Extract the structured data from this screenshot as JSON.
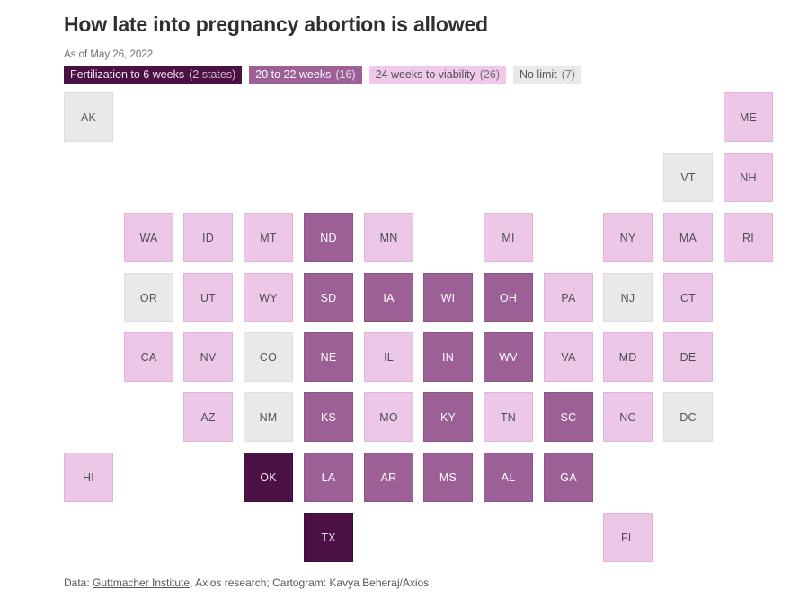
{
  "header": {
    "title": "How late into pregnancy abortion is allowed",
    "subtitle": "As of May 26, 2022"
  },
  "legend": {
    "items": [
      {
        "label": "Fertilization to 6 weeks",
        "count": "(2 states)",
        "bg": "#4b1144",
        "fg": "#f6e3f2",
        "border": "#3c0d36"
      },
      {
        "label": "20 to 22 weeks",
        "count": "(16)",
        "bg": "#9c6097",
        "fg": "#ffffff",
        "border": "#8a5385"
      },
      {
        "label": "24 weeks to viability",
        "count": "(26)",
        "bg": "#f0c9ea",
        "fg": "#4d4d55",
        "border": "#e2b6db"
      },
      {
        "label": "No limit",
        "count": "(7)",
        "bg": "#e9e8eb",
        "fg": "#54545b",
        "border": "#dddce1"
      }
    ]
  },
  "map": {
    "categories": {
      "fert6": {
        "bg": "#4b1144",
        "fg": "#f2dcef",
        "border": "#3c0d36"
      },
      "w2022": {
        "bg": "#9c6097",
        "fg": "#ffffff",
        "border": "#8a5385"
      },
      "viab": {
        "bg": "#edc7e8",
        "fg": "#4d4d55",
        "border": "#e0b4da"
      },
      "nolimit": {
        "bg": "#e9e8eb",
        "fg": "#54545b",
        "border": "#dddce1"
      }
    },
    "tiles": [
      {
        "abbr": "AK",
        "col": 0,
        "row": 0,
        "cat": "nolimit"
      },
      {
        "abbr": "ME",
        "col": 11,
        "row": 0,
        "cat": "viab"
      },
      {
        "abbr": "VT",
        "col": 10,
        "row": 1,
        "cat": "nolimit"
      },
      {
        "abbr": "NH",
        "col": 11,
        "row": 1,
        "cat": "viab"
      },
      {
        "abbr": "WA",
        "col": 1,
        "row": 2,
        "cat": "viab"
      },
      {
        "abbr": "ID",
        "col": 2,
        "row": 2,
        "cat": "viab"
      },
      {
        "abbr": "MT",
        "col": 3,
        "row": 2,
        "cat": "viab"
      },
      {
        "abbr": "ND",
        "col": 4,
        "row": 2,
        "cat": "w2022"
      },
      {
        "abbr": "MN",
        "col": 5,
        "row": 2,
        "cat": "viab"
      },
      {
        "abbr": "MI",
        "col": 7,
        "row": 2,
        "cat": "viab"
      },
      {
        "abbr": "NY",
        "col": 9,
        "row": 2,
        "cat": "viab"
      },
      {
        "abbr": "MA",
        "col": 10,
        "row": 2,
        "cat": "viab"
      },
      {
        "abbr": "RI",
        "col": 11,
        "row": 2,
        "cat": "viab"
      },
      {
        "abbr": "OR",
        "col": 1,
        "row": 3,
        "cat": "nolimit"
      },
      {
        "abbr": "UT",
        "col": 2,
        "row": 3,
        "cat": "viab"
      },
      {
        "abbr": "WY",
        "col": 3,
        "row": 3,
        "cat": "viab"
      },
      {
        "abbr": "SD",
        "col": 4,
        "row": 3,
        "cat": "w2022"
      },
      {
        "abbr": "IA",
        "col": 5,
        "row": 3,
        "cat": "w2022"
      },
      {
        "abbr": "WI",
        "col": 6,
        "row": 3,
        "cat": "w2022"
      },
      {
        "abbr": "OH",
        "col": 7,
        "row": 3,
        "cat": "w2022"
      },
      {
        "abbr": "PA",
        "col": 8,
        "row": 3,
        "cat": "viab"
      },
      {
        "abbr": "NJ",
        "col": 9,
        "row": 3,
        "cat": "nolimit"
      },
      {
        "abbr": "CT",
        "col": 10,
        "row": 3,
        "cat": "viab"
      },
      {
        "abbr": "CA",
        "col": 1,
        "row": 4,
        "cat": "viab"
      },
      {
        "abbr": "NV",
        "col": 2,
        "row": 4,
        "cat": "viab"
      },
      {
        "abbr": "CO",
        "col": 3,
        "row": 4,
        "cat": "nolimit"
      },
      {
        "abbr": "NE",
        "col": 4,
        "row": 4,
        "cat": "w2022"
      },
      {
        "abbr": "IL",
        "col": 5,
        "row": 4,
        "cat": "viab"
      },
      {
        "abbr": "IN",
        "col": 6,
        "row": 4,
        "cat": "w2022"
      },
      {
        "abbr": "WV",
        "col": 7,
        "row": 4,
        "cat": "w2022"
      },
      {
        "abbr": "VA",
        "col": 8,
        "row": 4,
        "cat": "viab"
      },
      {
        "abbr": "MD",
        "col": 9,
        "row": 4,
        "cat": "viab"
      },
      {
        "abbr": "DE",
        "col": 10,
        "row": 4,
        "cat": "viab"
      },
      {
        "abbr": "AZ",
        "col": 2,
        "row": 5,
        "cat": "viab"
      },
      {
        "abbr": "NM",
        "col": 3,
        "row": 5,
        "cat": "nolimit"
      },
      {
        "abbr": "KS",
        "col": 4,
        "row": 5,
        "cat": "w2022"
      },
      {
        "abbr": "MO",
        "col": 5,
        "row": 5,
        "cat": "viab"
      },
      {
        "abbr": "KY",
        "col": 6,
        "row": 5,
        "cat": "w2022"
      },
      {
        "abbr": "TN",
        "col": 7,
        "row": 5,
        "cat": "viab"
      },
      {
        "abbr": "SC",
        "col": 8,
        "row": 5,
        "cat": "w2022"
      },
      {
        "abbr": "NC",
        "col": 9,
        "row": 5,
        "cat": "viab"
      },
      {
        "abbr": "DC",
        "col": 10,
        "row": 5,
        "cat": "nolimit"
      },
      {
        "abbr": "HI",
        "col": 0,
        "row": 6,
        "cat": "viab"
      },
      {
        "abbr": "OK",
        "col": 3,
        "row": 6,
        "cat": "fert6"
      },
      {
        "abbr": "LA",
        "col": 4,
        "row": 6,
        "cat": "w2022"
      },
      {
        "abbr": "AR",
        "col": 5,
        "row": 6,
        "cat": "w2022"
      },
      {
        "abbr": "MS",
        "col": 6,
        "row": 6,
        "cat": "w2022"
      },
      {
        "abbr": "AL",
        "col": 7,
        "row": 6,
        "cat": "w2022"
      },
      {
        "abbr": "GA",
        "col": 8,
        "row": 6,
        "cat": "w2022"
      },
      {
        "abbr": "TX",
        "col": 4,
        "row": 7,
        "cat": "fert6"
      },
      {
        "abbr": "FL",
        "col": 9,
        "row": 7,
        "cat": "viab"
      }
    ]
  },
  "footer": {
    "prefix": "Data: ",
    "link": "Guttmacher Institute",
    "rest": ", Axios research; Cartogram: Kavya Beheraj/Axios"
  },
  "chart_data": {
    "type": "heatmap",
    "subtype": "tile-cartogram-us-states",
    "title": "How late into pregnancy abortion is allowed",
    "subtitle": "As of May 26, 2022",
    "legend_position": "top",
    "categories": [
      {
        "name": "Fertilization to 6 weeks",
        "count": 2,
        "color": "#4b1144",
        "states": [
          "OK",
          "TX"
        ]
      },
      {
        "name": "20 to 22 weeks",
        "count": 16,
        "color": "#9c6097",
        "states": [
          "ND",
          "SD",
          "IA",
          "WI",
          "OH",
          "NE",
          "IN",
          "WV",
          "KS",
          "KY",
          "SC",
          "LA",
          "AR",
          "MS",
          "AL",
          "GA"
        ]
      },
      {
        "name": "24 weeks to viability",
        "count": 26,
        "color": "#edc7e8",
        "states": [
          "ME",
          "NH",
          "WA",
          "ID",
          "MT",
          "MN",
          "MI",
          "NY",
          "MA",
          "RI",
          "UT",
          "WY",
          "PA",
          "CT",
          "CA",
          "NV",
          "IL",
          "VA",
          "MD",
          "DE",
          "AZ",
          "MO",
          "TN",
          "NC",
          "HI",
          "FL"
        ]
      },
      {
        "name": "No limit",
        "count": 7,
        "color": "#e9e8eb",
        "states": [
          "AK",
          "VT",
          "OR",
          "CO",
          "NM",
          "NJ",
          "DC"
        ]
      }
    ]
  }
}
